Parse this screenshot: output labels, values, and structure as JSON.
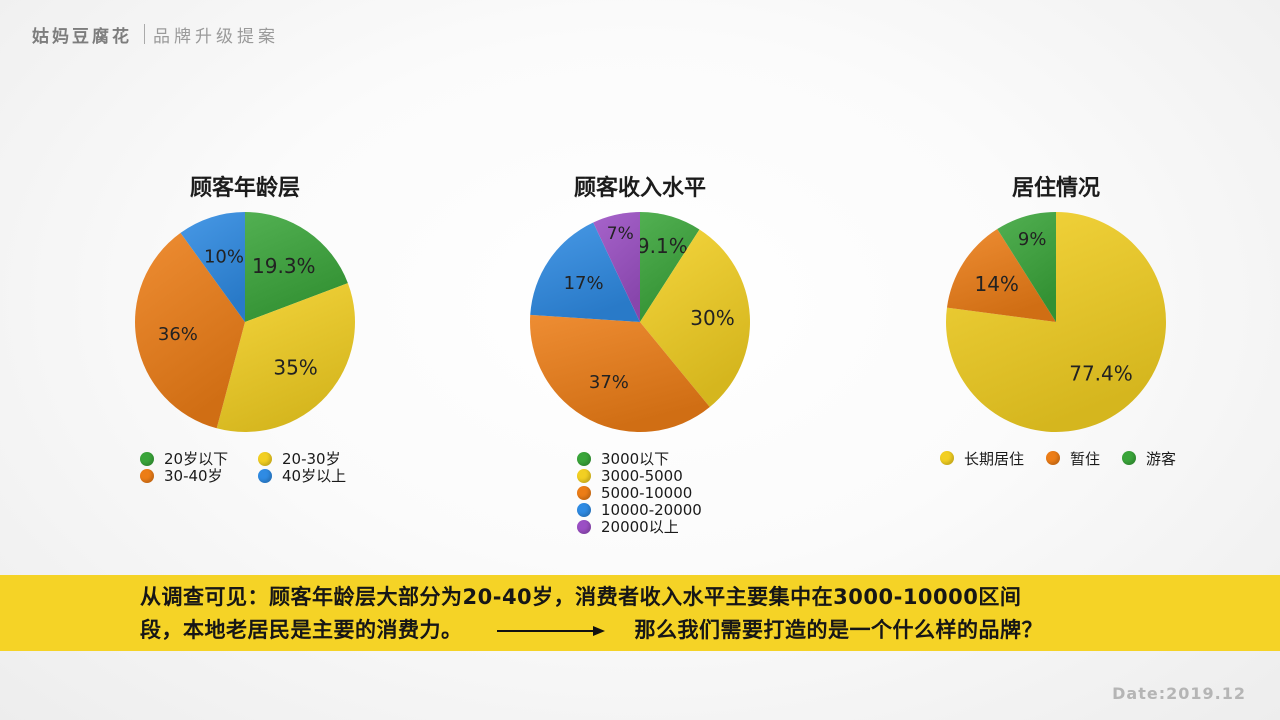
{
  "header": {
    "brand": "姑妈豆腐花",
    "subtitle": "品牌升级提案"
  },
  "colors": {
    "green": "#3aa53a",
    "yellow": "#f2cf22",
    "orange": "#ec7d17",
    "blue": "#2f8be3",
    "purple": "#9b4fc4",
    "banner": "#f5d326"
  },
  "chart_data": [
    {
      "type": "pie",
      "title": "顾客年龄层",
      "legend_position": "bottom",
      "slices": [
        {
          "label": "20岁以下",
          "value": 19.3,
          "display": "19.3%",
          "color": "#3aa53a"
        },
        {
          "label": "20-30岁",
          "value": 35,
          "display": "35%",
          "color": "#f2cf22"
        },
        {
          "label": "30-40岁",
          "value": 36,
          "display": "36%",
          "color": "#ec7d17"
        },
        {
          "label": "40岁以上",
          "value": 10,
          "display": "10%",
          "color": "#2f8be3"
        }
      ]
    },
    {
      "type": "pie",
      "title": "顾客收入水平",
      "legend_position": "bottom",
      "slices": [
        {
          "label": "3000以下",
          "value": 9.1,
          "display": "9.1%",
          "color": "#3aa53a"
        },
        {
          "label": "3000-5000",
          "value": 30,
          "display": "30%",
          "color": "#f2cf22"
        },
        {
          "label": "5000-10000",
          "value": 37,
          "display": "37%",
          "color": "#ec7d17"
        },
        {
          "label": "10000-20000",
          "value": 17,
          "display": "17%",
          "color": "#2f8be3"
        },
        {
          "label": "20000以上",
          "value": 7,
          "display": "7%",
          "color": "#9b4fc4"
        }
      ]
    },
    {
      "type": "pie",
      "title": "居住情况",
      "legend_position": "bottom",
      "slices": [
        {
          "label": "长期居住",
          "value": 77.4,
          "display": "77.4%",
          "color": "#f2cf22"
        },
        {
          "label": "暂住",
          "value": 14,
          "display": "14%",
          "color": "#ec7d17"
        },
        {
          "label": "游客",
          "value": 9,
          "display": "9%",
          "color": "#3aa53a"
        }
      ]
    }
  ],
  "conclusion": {
    "line1": "从调查可见：顾客年龄层大部分为20-40岁，消费者收入水平主要集中在3000-10000区间",
    "line2_left": "段，本地老居民是主要的消费力。",
    "line2_right": "那么我们需要打造的是一个什么样的品牌？"
  },
  "footer": {
    "date": "Date:2019.12"
  }
}
